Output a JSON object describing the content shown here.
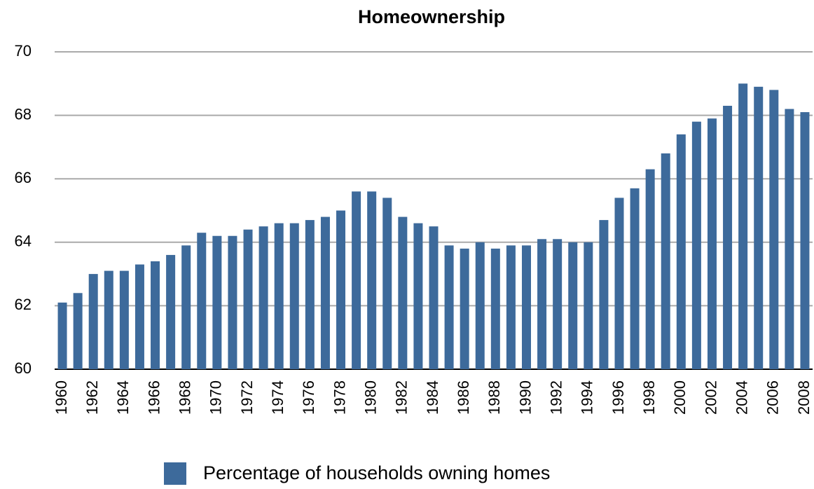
{
  "chart_data": {
    "type": "bar",
    "title": "Homeownership",
    "categories": [
      1960,
      null,
      1962,
      null,
      1964,
      null,
      1966,
      null,
      1968,
      null,
      1970,
      null,
      1972,
      null,
      1974,
      null,
      1976,
      null,
      1978,
      null,
      1980,
      null,
      1982,
      null,
      1984,
      null,
      1986,
      null,
      1988,
      null,
      1990,
      null,
      1992,
      null,
      1994,
      null,
      1996,
      null,
      1998,
      null,
      2000,
      null,
      2002,
      null,
      2004,
      null,
      2006,
      null,
      2008
    ],
    "series": [
      {
        "name": "Percentage of households owning homes",
        "color": "#3d6a9b",
        "values": [
          62.1,
          62.4,
          63.0,
          63.1,
          63.1,
          63.3,
          63.4,
          63.6,
          63.9,
          64.3,
          64.2,
          64.2,
          64.4,
          64.5,
          64.6,
          64.6,
          64.7,
          64.8,
          65.0,
          65.6,
          65.6,
          65.4,
          64.8,
          64.6,
          64.5,
          63.9,
          63.8,
          64.0,
          63.8,
          63.9,
          63.9,
          64.1,
          64.1,
          64.0,
          64.0,
          64.7,
          65.4,
          65.7,
          66.3,
          66.8,
          67.4,
          67.8,
          67.9,
          68.3,
          69.0,
          68.9,
          68.8,
          68.2,
          68.1
        ]
      }
    ],
    "ylim": [
      60,
      70
    ],
    "yticks": [
      60,
      62,
      64,
      66,
      68,
      70
    ],
    "grid": true,
    "legend": "bottom"
  }
}
